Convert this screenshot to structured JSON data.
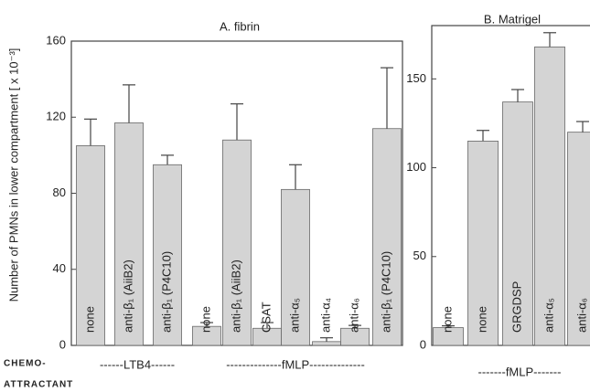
{
  "chemoattractant": [
    "CHEMO-",
    "ATTRACTANT"
  ],
  "chart_data": [
    {
      "type": "bar",
      "title": "A. fibrin",
      "y_label": "Number of PMNs in lower compartment [ x 10⁻³]",
      "ylim": [
        0,
        160
      ],
      "yticks": [
        0,
        40,
        80,
        120,
        160
      ],
      "color": "#d4d4d4",
      "groups": [
        {
          "label": "------LTB4------",
          "categories": [
            "none",
            "anti-β₁ (AiiB2)",
            "anti-β₁ (P4C10)"
          ],
          "values": [
            105,
            117,
            95
          ],
          "errors": [
            14,
            20,
            5
          ]
        },
        {
          "label": "--------------fMLP--------------",
          "categories": [
            "none",
            "anti-β₁ (AiiB2)",
            "CSAT",
            "anti-α₅",
            "anti-α₄",
            "anti-α₆",
            "anti-β₁ (P4C10)"
          ],
          "values": [
            10,
            108,
            9,
            82,
            2,
            9,
            114
          ],
          "errors": [
            2,
            19,
            3,
            13,
            2,
            1.5,
            32
          ]
        }
      ]
    },
    {
      "type": "bar",
      "title": "B. Matrigel",
      "ylim": [
        0,
        180
      ],
      "yticks": [
        0,
        50,
        100,
        150
      ],
      "color": "#d4d4d4",
      "groups": [
        {
          "label": "-------fMLP-------",
          "categories": [
            "none",
            "none",
            "GRGDSP",
            "anti-α₅",
            "anti-α₆"
          ],
          "values": [
            10,
            115,
            137,
            168,
            120
          ],
          "errors": [
            1,
            6,
            7,
            8,
            6
          ]
        }
      ]
    }
  ]
}
